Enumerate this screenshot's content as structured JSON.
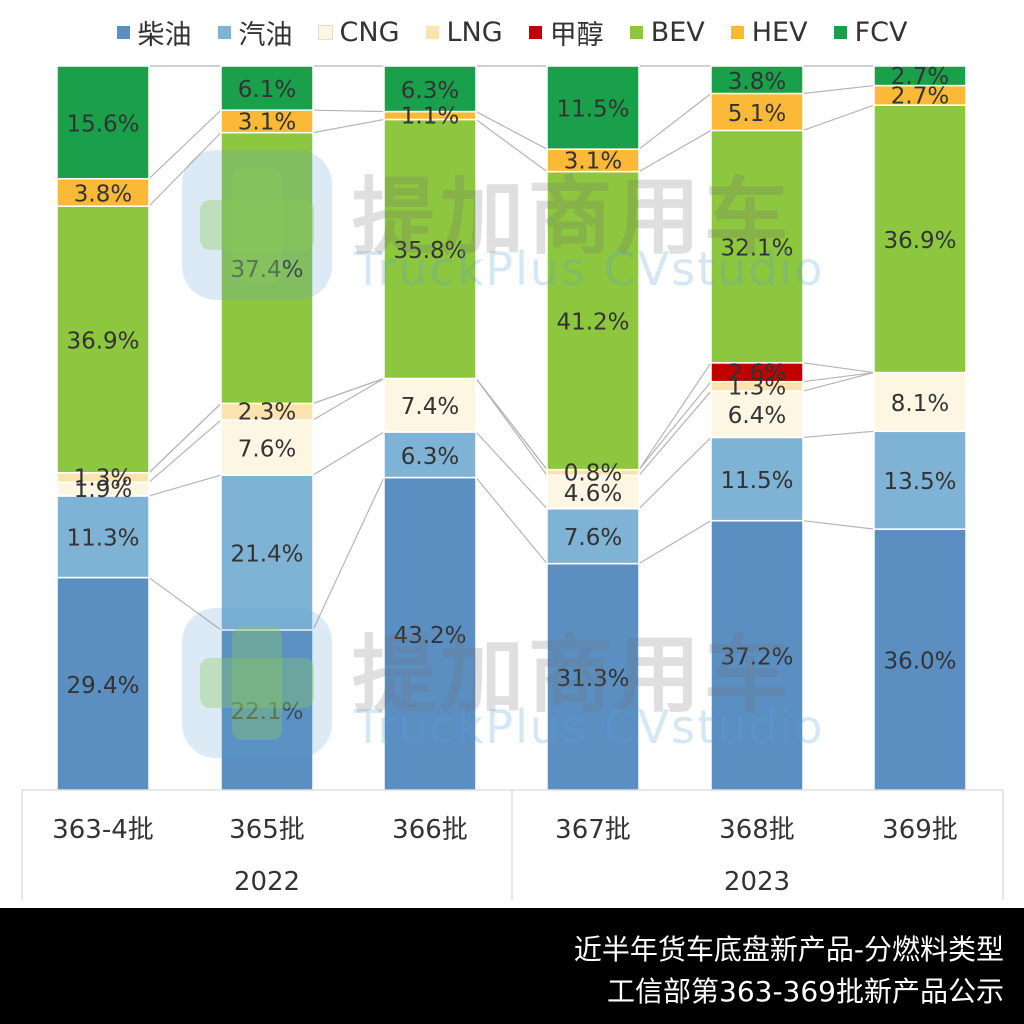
{
  "chart_data": {
    "type": "bar",
    "stacked": true,
    "normalized_percent": true,
    "categories": [
      "363-4批",
      "365批",
      "366批",
      "367批",
      "368批",
      "369批"
    ],
    "groups": [
      {
        "label": "2022",
        "categories": [
          "363-4批",
          "365批",
          "366批"
        ]
      },
      {
        "label": "2023",
        "categories": [
          "367批",
          "368批",
          "369批"
        ]
      }
    ],
    "series": [
      {
        "name": "柴油",
        "color": "#5b8fc2",
        "values": [
          29.4,
          22.1,
          43.2,
          31.3,
          37.2,
          36.0
        ]
      },
      {
        "name": "汽油",
        "color": "#7fb3d5",
        "values": [
          11.3,
          21.4,
          6.3,
          7.6,
          11.5,
          13.5
        ]
      },
      {
        "name": "CNG",
        "color": "#fdf6e3",
        "values": [
          1.9,
          7.6,
          7.4,
          4.6,
          6.4,
          8.1
        ]
      },
      {
        "name": "LNG",
        "color": "#fbe3b0",
        "values": [
          1.3,
          2.3,
          0,
          0.8,
          1.3,
          0
        ]
      },
      {
        "name": "甲醇",
        "color": "#c00000",
        "values": [
          0,
          0,
          0,
          0,
          2.6,
          0
        ]
      },
      {
        "name": "BEV",
        "color": "#8dc63f",
        "values": [
          36.9,
          37.4,
          35.8,
          41.2,
          32.1,
          36.9
        ]
      },
      {
        "name": "HEV",
        "color": "#fbb937",
        "values": [
          3.8,
          3.1,
          1.1,
          3.1,
          5.1,
          2.7
        ]
      },
      {
        "name": "FCV",
        "color": "#1aa04a",
        "values": [
          15.6,
          6.1,
          6.3,
          11.5,
          3.8,
          2.7
        ]
      }
    ],
    "data_labels": [
      [
        "29.4%",
        "11.3%",
        "1.9%",
        "1.3%",
        "",
        "36.9%",
        "3.8%",
        "15.6%"
      ],
      [
        "22.1%",
        "21.4%",
        "7.6%",
        "2.3%",
        "",
        "37.4%",
        "3.1%",
        "6.1%"
      ],
      [
        "43.2%",
        "6.3%",
        "7.4%",
        "",
        "",
        "35.8%",
        "1.1%",
        "6.3%"
      ],
      [
        "31.3%",
        "7.6%",
        "4.6%",
        "0.8%",
        "",
        "41.2%",
        "3.1%",
        "11.5%"
      ],
      [
        "37.2%",
        "11.5%",
        "6.4%",
        "1.3%",
        "2.6%",
        "32.1%",
        "5.1%",
        "3.8%"
      ],
      [
        "36.0%",
        "13.5%",
        "8.1%",
        "",
        "",
        "36.9%",
        "2.7%",
        "2.7%"
      ]
    ],
    "series_lines": true,
    "legend_position": "top",
    "grid": false
  },
  "watermark": {
    "cn": "提加商用车",
    "en": "TruckPlus CVstudio"
  },
  "footer": {
    "line1": "近半年货车底盘新产品-分燃料类型",
    "line2": "工信部第363-369批新产品公示"
  }
}
